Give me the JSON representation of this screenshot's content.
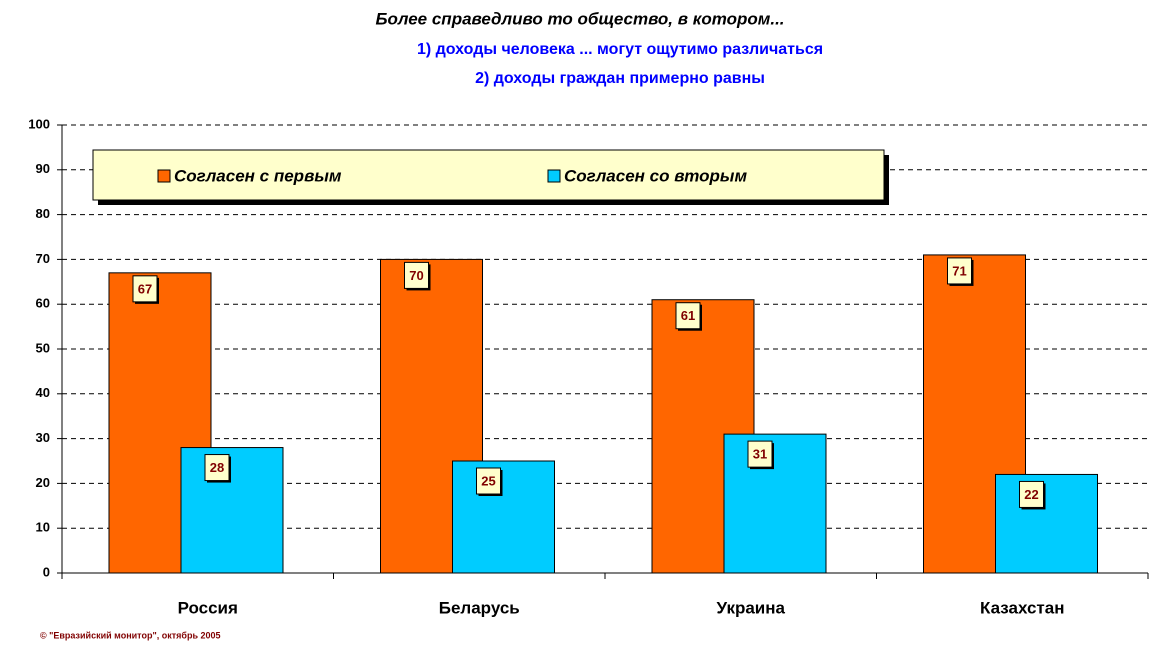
{
  "chart_data": {
    "type": "bar",
    "title": "Более справедливо то общество, в котором...",
    "subtitle": [
      "1) доходы человека ... могут ощутимо различаться",
      "2) доходы граждан примерно равны"
    ],
    "categories": [
      "Россия",
      "Беларусь",
      "Украина",
      "Казахстан"
    ],
    "series": [
      {
        "name": "Согласен с первым",
        "color": "#ff6600",
        "values": [
          67,
          70,
          61,
          71
        ]
      },
      {
        "name": "Согласен со вторым",
        "color": "#00ccff",
        "values": [
          28,
          25,
          31,
          22
        ]
      }
    ],
    "ylim": [
      0,
      100
    ],
    "yticks": [
      0,
      10,
      20,
      30,
      40,
      50,
      60,
      70,
      80,
      90,
      100
    ],
    "grid": true,
    "legend": "top",
    "source": "© \"Евразийский монитор\", октябрь 2005"
  }
}
